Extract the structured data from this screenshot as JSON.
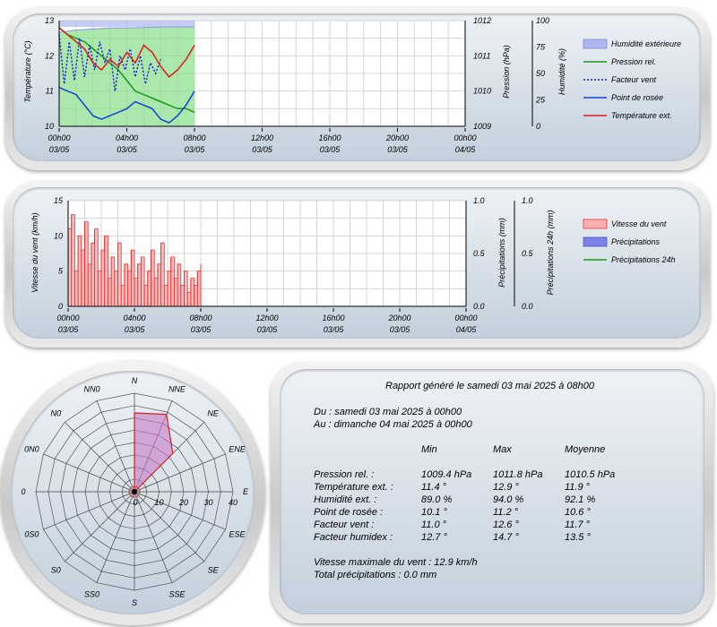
{
  "colors": {
    "humidity_fill": "#8fe08f",
    "humidity_top": "#aeb8f0",
    "pressure": "#1a9a1a",
    "wind_factor": "#1e1ed8",
    "dew_point": "#1540d8",
    "temperature": "#e01a1a",
    "wind_speed": "#e83030",
    "wind_fill": "#ffb0b0",
    "precip": "#7a82e8",
    "precip24": "#1a9a1a",
    "rose_fill": "#c77ac8",
    "rose_line": "#d42020"
  },
  "chart_data": [
    {
      "type": "line",
      "x_ticks": [
        "00h00",
        "04h00",
        "08h00",
        "12h00",
        "16h00",
        "20h00",
        "00h00"
      ],
      "x_dates": [
        "03/05",
        "03/05",
        "03/05",
        "03/05",
        "03/05",
        "03/05",
        "04/05"
      ],
      "x_hours": [
        0,
        4,
        8,
        12,
        16,
        20,
        24
      ],
      "xlim": [
        0,
        24
      ],
      "y_left_label": "Température (°C)",
      "y_left_lim": [
        10,
        13
      ],
      "y_left_ticks": [
        "13",
        "12",
        "11",
        "10"
      ],
      "y_right1_label": "Pression (hPa)",
      "y_right1_lim": [
        1009,
        1012
      ],
      "y_right1_ticks": [
        "1012",
        "1011",
        "1010",
        "1009"
      ],
      "y_right2_label": "Humidité (%)",
      "y_right2_lim": [
        0,
        100
      ],
      "y_right2_ticks": [
        "100",
        "75",
        "50",
        "25",
        "0"
      ],
      "grid": true,
      "legend_position": "right",
      "series": [
        {
          "name": "Humidité extérieure",
          "axis": "humidity",
          "style": "area",
          "x": [
            0,
            1,
            2,
            3,
            4,
            5,
            6,
            7,
            8
          ],
          "values": [
            89,
            91,
            92,
            93,
            93,
            93.5,
            94,
            94,
            94
          ]
        },
        {
          "name": "Pression rel.",
          "axis": "pressure",
          "style": "solid",
          "x": [
            0,
            0.5,
            1,
            1.5,
            2,
            2.5,
            3,
            3.5,
            4,
            4.5,
            5,
            5.5,
            6,
            6.5,
            7,
            7.5,
            8
          ],
          "values": [
            1011.8,
            1011.6,
            1011.5,
            1011.4,
            1011.2,
            1011.0,
            1010.8,
            1010.6,
            1010.3,
            1010.0,
            1009.9,
            1009.8,
            1009.7,
            1009.6,
            1009.5,
            1009.5,
            1009.4
          ]
        },
        {
          "name": "Facteur vent",
          "axis": "temperature",
          "style": "dotted",
          "x": [
            0,
            0.3,
            0.6,
            0.9,
            1.2,
            1.5,
            1.8,
            2.1,
            2.4,
            2.7,
            3.0,
            3.3,
            3.6,
            3.9,
            4.2,
            4.5,
            4.8,
            5.1,
            5.4,
            5.7,
            6.0
          ],
          "values": [
            12.6,
            11.2,
            12.4,
            11.3,
            12.5,
            11.4,
            12.3,
            11.6,
            12.4,
            11.8,
            12.2,
            11.0,
            12.0,
            11.6,
            12.2,
            11.4,
            12.0,
            11.2,
            11.8,
            11.5,
            11.9
          ]
        },
        {
          "name": "Point de rosée",
          "axis": "temperature",
          "style": "solid",
          "x": [
            0,
            0.5,
            1,
            1.5,
            2,
            2.5,
            3,
            3.5,
            4,
            4.5,
            5,
            5.5,
            6,
            6.5,
            7,
            7.5,
            8
          ],
          "values": [
            11.1,
            11.0,
            10.9,
            10.6,
            10.3,
            10.2,
            10.3,
            10.4,
            10.5,
            10.7,
            10.6,
            10.5,
            10.2,
            10.1,
            10.3,
            10.6,
            11.0
          ]
        },
        {
          "name": "Température ext.",
          "axis": "temperature",
          "style": "solid",
          "x": [
            0,
            0.5,
            1,
            1.5,
            2,
            2.5,
            3,
            3.5,
            4,
            4.5,
            5,
            5.5,
            6,
            6.5,
            7,
            7.5,
            8
          ],
          "values": [
            12.8,
            12.6,
            12.4,
            12.2,
            11.8,
            11.6,
            11.9,
            11.7,
            12.1,
            11.8,
            12.3,
            12.1,
            11.7,
            11.4,
            11.6,
            11.9,
            12.3
          ]
        }
      ]
    },
    {
      "type": "area",
      "x_ticks": [
        "00h00",
        "04h00",
        "08h00",
        "12h00",
        "16h00",
        "20h00",
        "00h00"
      ],
      "x_dates": [
        "03/05",
        "03/05",
        "03/05",
        "03/05",
        "03/05",
        "03/05",
        "04/05"
      ],
      "x_hours": [
        0,
        4,
        8,
        12,
        16,
        20,
        24
      ],
      "xlim": [
        0,
        24
      ],
      "y_left_label": "Vitesse du vent (km/h)",
      "y_left_lim": [
        0,
        15
      ],
      "y_left_ticks": [
        "15",
        "10",
        "5",
        "0"
      ],
      "y_right1_label": "Précipitations (mm)",
      "y_right1_lim": [
        0,
        1
      ],
      "y_right1_ticks": [
        "1.0",
        "0.5",
        "0.0"
      ],
      "y_right2_label": "Précipitations 24h (mm)",
      "y_right2_lim": [
        0,
        1
      ],
      "y_right2_ticks": [
        "1.0",
        "0.5",
        "0.0"
      ],
      "grid": true,
      "legend_position": "right",
      "series": [
        {
          "name": "Vitesse du vent",
          "axis": "wind",
          "x": [
            0,
            0.2,
            0.4,
            0.6,
            0.8,
            1.0,
            1.2,
            1.4,
            1.6,
            1.8,
            2.0,
            2.2,
            2.4,
            2.6,
            2.8,
            3.0,
            3.2,
            3.4,
            3.6,
            3.8,
            4.0,
            4.2,
            4.4,
            4.6,
            4.8,
            5.0,
            5.2,
            5.4,
            5.6,
            5.8,
            6.0,
            6.2,
            6.4,
            6.6,
            6.8,
            7.0,
            7.2,
            7.4,
            7.6,
            7.8,
            8.0
          ],
          "values": [
            11,
            13,
            5,
            10,
            8,
            12,
            6,
            9,
            11,
            5,
            8,
            10,
            4,
            7,
            5,
            9,
            3,
            6,
            5,
            8,
            4,
            6,
            7,
            3,
            5,
            8,
            4,
            6,
            9,
            3,
            5,
            7,
            4,
            6,
            3,
            5,
            2,
            4,
            3,
            5,
            6
          ]
        },
        {
          "name": "Précipitations",
          "axis": "precip",
          "x": [
            0,
            8
          ],
          "values": [
            0,
            0
          ]
        },
        {
          "name": "Précipitations 24h",
          "axis": "precip24",
          "x": [
            0,
            8
          ],
          "values": [
            0,
            0
          ]
        }
      ]
    },
    {
      "type": "radar",
      "directions": [
        "N",
        "NNE",
        "NE",
        "ENE",
        "E",
        "ESE",
        "SE",
        "SSE",
        "S",
        "SS0",
        "S0",
        "0S0",
        "0",
        "0N0",
        "N0",
        "NN0"
      ],
      "r_ticks": [
        "0",
        "10",
        "20",
        "30",
        "40"
      ],
      "rlim": [
        0,
        40
      ],
      "values": [
        32,
        34,
        22,
        0,
        0,
        0,
        0,
        0,
        0,
        0,
        0,
        0,
        0,
        0,
        0,
        0
      ]
    }
  ],
  "report": {
    "title": "Rapport généré le samedi 03 mai 2025 à 08h00",
    "from": "Du : samedi 03 mai 2025 à 00h00",
    "to": "Au : dimanche 04 mai 2025 à 00h00",
    "headers": [
      "Min",
      "Max",
      "Moyenne"
    ],
    "rows": [
      {
        "label": "Pression rel. :",
        "min": "1009.4 hPa",
        "max": "1011.8 hPa",
        "avg": "1010.5 hPa"
      },
      {
        "label": "Température ext. :",
        "min": "11.4 °",
        "max": "12.9 °",
        "avg": "11.9 °"
      },
      {
        "label": "Humidité ext. :",
        "min": "89.0 %",
        "max": "94.0 %",
        "avg": "92.1 %"
      },
      {
        "label": "Point de rosée :",
        "min": "10.1 °",
        "max": "11.2 °",
        "avg": "10.6 °"
      },
      {
        "label": "Facteur vent :",
        "min": "11.0 °",
        "max": "12.6 °",
        "avg": "11.7 °"
      },
      {
        "label": "Facteur humidex :",
        "min": "12.7 °",
        "max": "14.7 °",
        "avg": "13.5 °"
      }
    ],
    "max_wind": "Vitesse maximale du vent : 12.9 km/h",
    "total_precip": "Total précipitations : 0.0 mm"
  }
}
